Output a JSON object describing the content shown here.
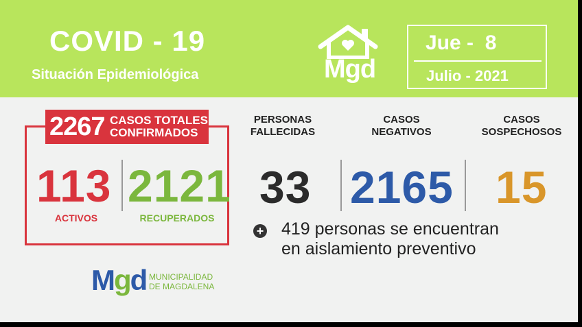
{
  "header": {
    "title": "COVID - 19",
    "subtitle": "Situación Epidemiológica",
    "logo_text": "Mgd",
    "date_day": "Jue -  8",
    "date_month": "Julio - 2021"
  },
  "confirmed": {
    "total": "2267",
    "label_line1": "CASOS TOTALES",
    "label_line2": "CONFIRMADOS",
    "active_value": "113",
    "active_label": "ACTIVOS",
    "recovered_value": "2121",
    "recovered_label": "RECUPERADOS"
  },
  "stats": {
    "deaths_line1": "PERSONAS",
    "deaths_line2": "FALLECIDAS",
    "deaths_value": "33",
    "negative_line1": "CASOS",
    "negative_line2": "NEGATIVOS",
    "negative_value": "2165",
    "suspected_line1": "CASOS",
    "suspected_line2": "SOSPECHOSOS",
    "suspected_value": "15"
  },
  "note": {
    "line1": "419 personas se encuentran",
    "line2": "en aislamiento preventivo",
    "icon": "plus-circle-icon"
  },
  "footer": {
    "logo_m": "M",
    "logo_g": "g",
    "logo_d": "d",
    "line1": "MUNICIPALIDAD",
    "line2": "DE MAGDALENA"
  },
  "colors": {
    "header_green": "#b8e55c",
    "red": "#d9343d",
    "green": "#7bb73d",
    "blue": "#2d5aa8",
    "orange": "#d9962a",
    "dark": "#2b2b2b"
  }
}
